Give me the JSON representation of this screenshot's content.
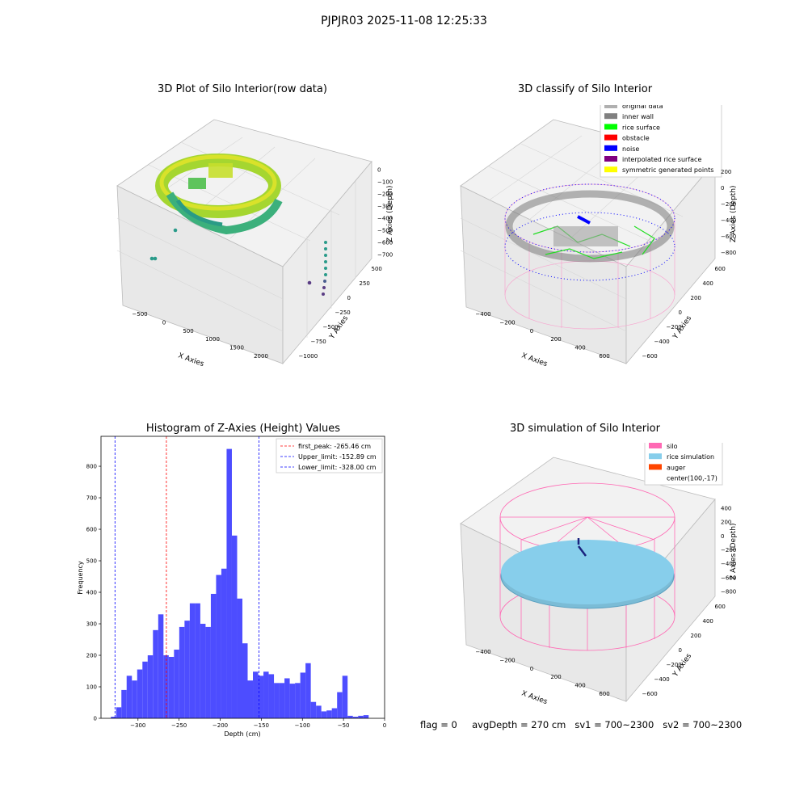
{
  "figure": {
    "suptitle": "PJPJR03 2025-11-08 12:25:33"
  },
  "footer": {
    "text": "flag = 0     avgDepth = 270 cm   sv1 = 700~2300   sv2 = 700~2300"
  },
  "colors": {
    "histogram_bar": "#4d4dff",
    "first_peak_line": "#ff0000",
    "limit_lines": "#0000ff",
    "silo_wire": "#ff69b4",
    "rice_surface": "#87ceeb",
    "raw_surface": "#9acd32",
    "noise": "#0000ff"
  },
  "chart_data": [
    {
      "type": "scatter3d",
      "title": "3D Plot of Silo Interior(row data)",
      "xlabel": "X Axies",
      "ylabel": "Y Axies",
      "zlabel": "Z Axies (Depth)",
      "xticks": [
        "-500",
        "0",
        "500",
        "1000",
        "1500",
        "2000"
      ],
      "yticks": [
        "-1000",
        "-750",
        "-500",
        "-250",
        "0",
        "250",
        "500"
      ],
      "zticks": [
        "0",
        "-100",
        "-200",
        "-300",
        "-400",
        "-500",
        "-600",
        "-700"
      ],
      "xlim": [
        -700,
        2200
      ],
      "ylim": [
        -1050,
        600
      ],
      "zlim": [
        -800,
        50
      ],
      "colormap": "viridis",
      "outlier_points": [
        {
          "x": -600,
          "y": 300,
          "z": -600
        },
        {
          "x": -480,
          "y": 500,
          "z": -350
        },
        {
          "x": 1700,
          "y": -250,
          "z": -500
        },
        {
          "x": 1800,
          "y": -400,
          "z": -650
        }
      ]
    },
    {
      "type": "scatter3d",
      "title": "3D classify of Silo Interior",
      "xlabel": "X Axies",
      "ylabel": "Y Axies",
      "zlabel": "Z Axies (Depth)",
      "xticks": [
        "-400",
        "-200",
        "0",
        "200",
        "400",
        "600"
      ],
      "yticks": [
        "-600",
        "-400",
        "-200",
        "0",
        "200",
        "400",
        "600"
      ],
      "zticks": [
        "200",
        "0",
        "-200",
        "-400",
        "-600",
        "-800"
      ],
      "xlim": [
        -550,
        750
      ],
      "ylim": [
        -700,
        700
      ],
      "zlim": [
        -900,
        300
      ],
      "legend": {
        "position": "upper-right",
        "entries": [
          {
            "label": "original data",
            "color": "#b0b0b0"
          },
          {
            "label": "inner wall",
            "color": "#808080"
          },
          {
            "label": "rice surface",
            "color": "#00ff00"
          },
          {
            "label": "obstacle",
            "color": "#ff0000"
          },
          {
            "label": "noise",
            "color": "#0000ff"
          },
          {
            "label": "interpolated rice surface",
            "color": "#800080"
          },
          {
            "label": "symmetric generated points",
            "color": "#ffff00"
          }
        ]
      }
    },
    {
      "type": "bar",
      "title": "Histogram of Z-Axies (Height) Values",
      "xlabel": "Depth (cm)",
      "ylabel": "Frequency",
      "xlim": [
        -345,
        0
      ],
      "ylim": [
        0,
        895
      ],
      "xticks": [
        -300,
        -250,
        -200,
        -150,
        -100,
        -50,
        0
      ],
      "yticks": [
        0,
        100,
        200,
        300,
        400,
        500,
        600,
        700,
        800
      ],
      "bin_start": -333,
      "bin_width": 6.4,
      "values": [
        5,
        35,
        90,
        135,
        120,
        155,
        180,
        200,
        280,
        330,
        200,
        195,
        218,
        290,
        310,
        365,
        365,
        300,
        290,
        395,
        455,
        475,
        855,
        580,
        380,
        238,
        120,
        148,
        135,
        148,
        140,
        112,
        112,
        127,
        110,
        112,
        145,
        175,
        52,
        40,
        22,
        25,
        32,
        83,
        135,
        8,
        5,
        8,
        10
      ],
      "vlines": [
        {
          "x": -265.46,
          "color": "#ff0000",
          "label": "first_peak: -265.46 cm"
        },
        {
          "x": -152.89,
          "color": "#0000ff",
          "label": "Upper_limit: -152.89 cm"
        },
        {
          "x": -328.0,
          "color": "#0000ff",
          "label": "Lower_limit: -328.00 cm"
        }
      ],
      "legend": {
        "position": "upper-right"
      }
    },
    {
      "type": "surface3d",
      "title": "3D simulation of Silo Interior",
      "xlabel": "X Axies",
      "ylabel": "Y Axies",
      "zlabel": "Z Axies (Depth)",
      "xticks": [
        "-400",
        "-200",
        "0",
        "200",
        "400",
        "600"
      ],
      "yticks": [
        "-600",
        "-400",
        "-200",
        "0",
        "200",
        "400",
        "600"
      ],
      "zticks": [
        "400",
        "200",
        "0",
        "-200",
        "-400",
        "-600",
        "-800"
      ],
      "xlim": [
        -550,
        750
      ],
      "ylim": [
        -700,
        700
      ],
      "zlim": [
        -900,
        450
      ],
      "legend": {
        "position": "upper-right",
        "entries": [
          {
            "label": "silo",
            "color": "#ff69b4"
          },
          {
            "label": "rice simulation",
            "color": "#87ceeb"
          },
          {
            "label": "auger",
            "color": "#ff4500"
          },
          {
            "label": "center(100,-17)",
            "color": ""
          }
        ]
      }
    }
  ]
}
